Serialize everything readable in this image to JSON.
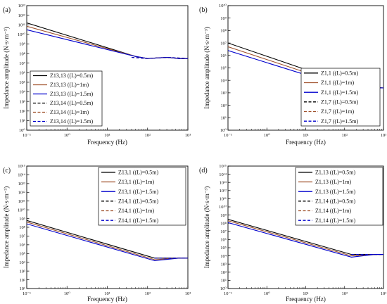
{
  "figure": {
    "xlabel": "Frequency (Hz)",
    "ylabel": "Impedance amplitude (N·s·m⁻³)"
  },
  "chart_data": [
    {
      "panel": "(a)",
      "type": "line",
      "xscale": "log",
      "yscale": "log",
      "xlim": [
        0.1,
        1000
      ],
      "ylim": [
        1,
        10000000000000.0
      ],
      "xlabel": "Frequency (Hz)",
      "ylabel": "Impedance amplitude (N·s·m⁻³)",
      "x_ticks": [
        "10⁻¹",
        "10⁰",
        "10¹",
        "10²",
        "10³"
      ],
      "y_ticks": [
        "10⁰",
        "10¹",
        "10²",
        "10³",
        "10⁴",
        "10⁵",
        "10⁶",
        "10⁷",
        "10⁸",
        "10⁹",
        "10¹⁰",
        "10¹¹",
        "10¹²",
        "10¹³"
      ],
      "legend_position": "lower-left",
      "series": [
        {
          "name": "Z13,13 ((L)=0.5m)",
          "color": "#000000",
          "dash": "solid",
          "x": [
            0.1,
            50,
            100,
            300,
            600,
            1000
          ],
          "y": [
            160000000000.0,
            50000000.0,
            30000000.0,
            40000000.0,
            30000000.0,
            30000000.0
          ]
        },
        {
          "name": "Z13,13 ((L)=1m)",
          "color": "#a0522d",
          "dash": "solid",
          "x": [
            0.1,
            50,
            100,
            300,
            600,
            1000
          ],
          "y": [
            70000000000.0,
            50000000.0,
            30000000.0,
            40000000.0,
            30000000.0,
            30000000.0
          ]
        },
        {
          "name": "Z13,13 ((L)=1.5m)",
          "color": "#0000cd",
          "dash": "solid",
          "x": [
            0.1,
            50,
            100,
            300,
            600,
            1000
          ],
          "y": [
            30000000000.0,
            50000000.0,
            30000000.0,
            40000000.0,
            30000000.0,
            30000000.0
          ]
        },
        {
          "name": "Z13,14 ((L)=0.5m)",
          "color": "#000000",
          "dash": "dash",
          "x": [
            40,
            100,
            300,
            1000
          ],
          "y": [
            40000000.0,
            30000000.0,
            40000000.0,
            30000000.0
          ]
        },
        {
          "name": "Z13,14 ((L)=1m)",
          "color": "#a0522d",
          "dash": "dash",
          "x": [
            40,
            100,
            300,
            1000
          ],
          "y": [
            40000000.0,
            30000000.0,
            40000000.0,
            30000000.0
          ]
        },
        {
          "name": "Z13,14 ((L)=1.5m)",
          "color": "#0000cd",
          "dash": "dash",
          "x": [
            40,
            100,
            300,
            1000
          ],
          "y": [
            40000000.0,
            30000000.0,
            40000000.0,
            30000000.0
          ]
        }
      ]
    },
    {
      "panel": "(b)",
      "type": "line",
      "xscale": "log",
      "yscale": "log",
      "xlim": [
        0.1,
        1000
      ],
      "ylim": [
        1,
        10000000000.0
      ],
      "xlabel": "Frequency (Hz)",
      "ylabel": "Impedance amplitude (N·s·m⁻³)",
      "x_ticks": [
        "10⁻¹",
        "10⁰",
        "10¹",
        "10²",
        "10³"
      ],
      "y_ticks": [
        "10⁰",
        "10¹",
        "10²",
        "10³",
        "10⁴",
        "10⁵",
        "10⁶",
        "10⁷",
        "10⁸",
        "10⁹",
        "10¹⁰"
      ],
      "legend_position": "lower-right",
      "series": [
        {
          "name": "Z1,1 ((L)=0.5m)",
          "color": "#000000",
          "dash": "solid",
          "x": [
            0.1,
            200,
            600,
            1000
          ],
          "y": [
            10000000.0,
            3000.0,
            2500.0,
            2500.0
          ]
        },
        {
          "name": "Z1,1 ((L)=1m)",
          "color": "#a0522d",
          "dash": "solid",
          "x": [
            0.1,
            200,
            600,
            1000
          ],
          "y": [
            5000000.0,
            2000.0,
            2500.0,
            2500.0
          ]
        },
        {
          "name": "Z1,1 ((L)=1.5m)",
          "color": "#0000cd",
          "dash": "solid",
          "x": [
            0.1,
            200,
            600,
            1000
          ],
          "y": [
            2500000.0,
            1500.0,
            2500.0,
            2500.0
          ]
        },
        {
          "name": "Z1,7 ((L)=0.5m)",
          "color": "#000000",
          "dash": "dash",
          "x": [
            200,
            600,
            1000
          ],
          "y": [
            2500.0,
            2500.0,
            2500.0
          ]
        },
        {
          "name": "Z1,7 ((L)=1m)",
          "color": "#a0522d",
          "dash": "dash",
          "x": [
            200,
            600,
            1000
          ],
          "y": [
            2500.0,
            2500.0,
            2500.0
          ]
        },
        {
          "name": "Z1,7 ((L)=1.5m)",
          "color": "#0000cd",
          "dash": "dash",
          "x": [
            200,
            600,
            1000
          ],
          "y": [
            2500.0,
            2500.0,
            2500.0
          ]
        }
      ]
    },
    {
      "panel": "(c)",
      "type": "line",
      "xscale": "log",
      "yscale": "log",
      "xlim": [
        0.1,
        1000
      ],
      "ylim": [
        10,
        1000000000000000.0
      ],
      "xlabel": "Frequency (Hz)",
      "ylabel": "Impedance amplitude (N·s·m⁻³)",
      "x_ticks": [
        "10⁻¹",
        "10⁰",
        "10¹",
        "10²",
        "10³"
      ],
      "y_ticks": [
        "10¹",
        "10²",
        "10³",
        "10⁴",
        "10⁵",
        "10⁶",
        "10⁷",
        "10⁸",
        "10⁹",
        "10¹⁰",
        "10¹¹",
        "10¹²",
        "10¹³",
        "10¹⁴",
        "10¹⁵"
      ],
      "legend_position": "top-right",
      "series": [
        {
          "name": "Z13,1 ((L)=0.5m)",
          "color": "#000000",
          "dash": "solid",
          "x": [
            0.1,
            150,
            600,
            1000
          ],
          "y": [
            600000000.0,
            30000.0,
            30000.0,
            30000.0
          ]
        },
        {
          "name": "Z13,1 ((L)=1m)",
          "color": "#a0522d",
          "dash": "solid",
          "x": [
            0.1,
            150,
            600,
            1000
          ],
          "y": [
            400000000.0,
            20000.0,
            30000.0,
            30000.0
          ]
        },
        {
          "name": "Z13,1 ((L)=1.5m)",
          "color": "#0000cd",
          "dash": "solid",
          "x": [
            0.1,
            150,
            600,
            1000
          ],
          "y": [
            250000000.0,
            15000.0,
            30000.0,
            30000.0
          ]
        },
        {
          "name": "Z14,1 ((L)=0.5m)",
          "color": "#000000",
          "dash": "dash",
          "x": [
            150,
            600,
            1000
          ],
          "y": [
            30000.0,
            30000.0,
            30000.0
          ]
        },
        {
          "name": "Z14,1 ((L)=1m)",
          "color": "#a0522d",
          "dash": "dash",
          "x": [
            150,
            600,
            1000
          ],
          "y": [
            30000.0,
            30000.0,
            30000.0
          ]
        },
        {
          "name": "Z14,1 ((L)=1.5m)",
          "color": "#0000cd",
          "dash": "dash",
          "x": [
            150,
            600,
            1000
          ],
          "y": [
            30000.0,
            30000.0,
            30000.0
          ]
        }
      ]
    },
    {
      "panel": "(d)",
      "type": "line",
      "xscale": "log",
      "yscale": "log",
      "xlim": [
        0.1,
        1000
      ],
      "ylim": [
        1,
        1000000000000000.0
      ],
      "xlabel": "Frequency (Hz)",
      "ylabel": "Impedance amplitude (N·s·m⁻³)",
      "x_ticks": [
        "10⁻¹",
        "10⁰",
        "10¹",
        "10²",
        "10³"
      ],
      "y_ticks": [
        "10⁰",
        "10¹",
        "10²",
        "10³",
        "10⁴",
        "10⁵",
        "10⁶",
        "10⁷",
        "10⁸",
        "10⁹",
        "10¹⁰",
        "10¹¹",
        "10¹²",
        "10¹³",
        "10¹⁴",
        "10¹⁵"
      ],
      "legend_position": "top-right",
      "series": [
        {
          "name": "Z1,13 ((L)=0.5m)",
          "color": "#000000",
          "dash": "solid",
          "x": [
            0.1,
            150,
            600,
            1000
          ],
          "y": [
            300000000.0,
            15000.0,
            15000.0,
            15000.0
          ]
        },
        {
          "name": "Z1,13 ((L)=1m)",
          "color": "#a0522d",
          "dash": "solid",
          "x": [
            0.1,
            150,
            600,
            1000
          ],
          "y": [
            200000000.0,
            10000.0,
            15000.0,
            15000.0
          ]
        },
        {
          "name": "Z1,13 ((L)=1.5m)",
          "color": "#0000cd",
          "dash": "solid",
          "x": [
            0.1,
            150,
            600,
            1000
          ],
          "y": [
            120000000.0,
            7000.0,
            15000.0,
            15000.0
          ]
        },
        {
          "name": "Z1,14 ((L)=0.5m)",
          "color": "#000000",
          "dash": "dash",
          "x": [
            150,
            600,
            1000
          ],
          "y": [
            15000.0,
            15000.0,
            15000.0
          ]
        },
        {
          "name": "Z1,14 ((L)=1m)",
          "color": "#a0522d",
          "dash": "dash",
          "x": [
            150,
            600,
            1000
          ],
          "y": [
            15000.0,
            15000.0,
            15000.0
          ]
        },
        {
          "name": "Z1,14 ((L)=1.5m)",
          "color": "#0000cd",
          "dash": "dash",
          "x": [
            150,
            600,
            1000
          ],
          "y": [
            15000.0,
            15000.0,
            15000.0
          ]
        }
      ]
    }
  ]
}
